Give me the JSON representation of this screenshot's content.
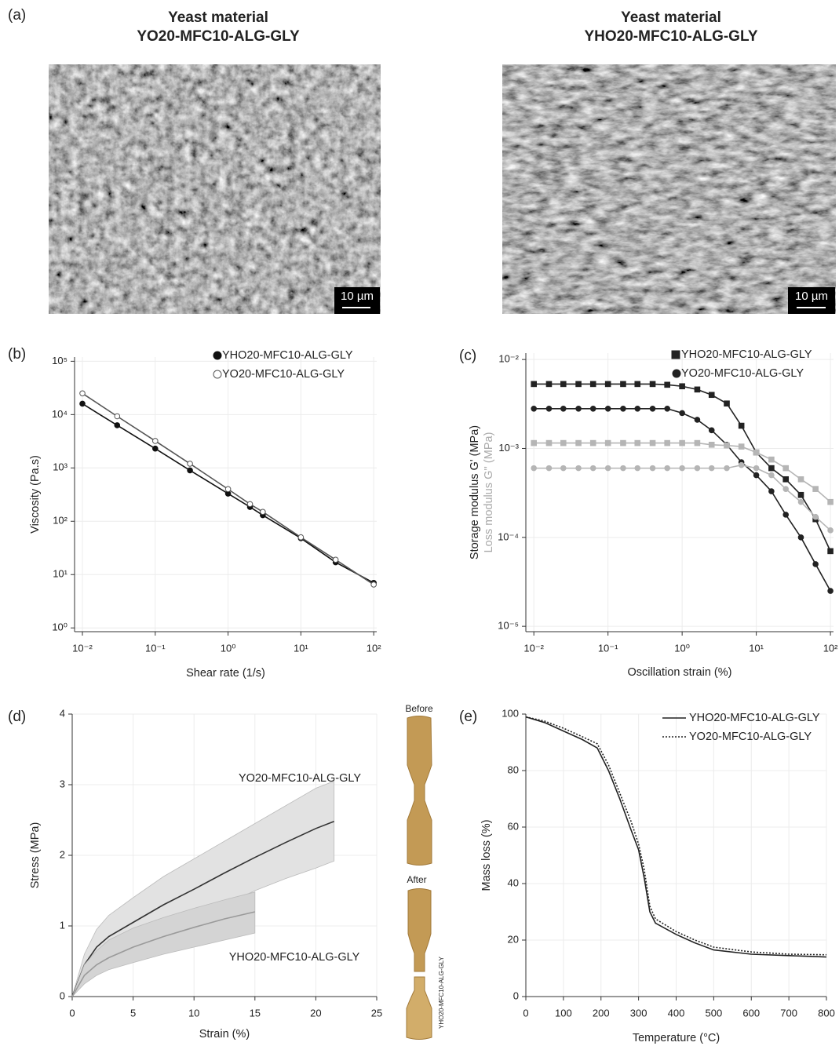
{
  "panel_labels": [
    "(a)",
    "(b)",
    "(c)",
    "(d)",
    "(e)"
  ],
  "images": [
    {
      "title": [
        "Yeast material",
        "YO20-MFC10-ALG-GLY"
      ],
      "scale_bar": "10 µm"
    },
    {
      "title": [
        "Yeast material",
        "YHO20-MFC10-ALG-GLY"
      ],
      "scale_bar": "10 µm"
    }
  ],
  "specimen_photo": {
    "before": "Before",
    "after": "After",
    "label": "YHO20-MFC10-ALG-GLY"
  },
  "chart_data": [
    {
      "type": "line",
      "xscale": "log",
      "yscale": "log",
      "grid": true,
      "legend": "upper right",
      "xlabel": "Shear rate (1/s)",
      "ylabels": [
        {
          "text": "Viscosity (Pa.s)",
          "color": "#222"
        }
      ],
      "xlim": [
        0.0078,
        110
      ],
      "ylim": [
        0.85,
        120000
      ],
      "xticks": [
        {
          "value": 0.01,
          "label": "10⁻²"
        },
        {
          "value": 0.1,
          "label": "10⁻¹"
        },
        {
          "value": 1,
          "label": "10⁰"
        },
        {
          "value": 10,
          "label": "10¹"
        },
        {
          "value": 100,
          "label": "10²"
        }
      ],
      "yticks": [
        {
          "value": 1,
          "label": "10⁰"
        },
        {
          "value": 10,
          "label": "10¹"
        },
        {
          "value": 100,
          "label": "10²"
        },
        {
          "value": 1000,
          "label": "10³"
        },
        {
          "value": 10000,
          "label": "10⁴"
        },
        {
          "value": 100000,
          "label": "10⁵"
        }
      ],
      "x": [
        0.01,
        0.03,
        0.1,
        0.3,
        1,
        2,
        3,
        10,
        30,
        100
      ],
      "series": [
        {
          "name": "YHO20-MFC10-ALG-GLY",
          "color": "#111111",
          "marker": "circle",
          "marker_fill": "#111111",
          "values": [
            16000,
            6300,
            2300,
            900,
            330,
            185,
            130,
            48,
            17,
            7
          ]
        },
        {
          "name": "YO20-MFC10-ALG-GLY",
          "color": "#555555",
          "marker": "circle",
          "marker_fill": "#ffffff",
          "values": [
            25000,
            9300,
            3200,
            1200,
            400,
            210,
            150,
            50,
            19,
            6.5
          ]
        }
      ]
    },
    {
      "type": "line",
      "xscale": "log",
      "yscale": "log",
      "grid": true,
      "legend": "upper right",
      "xlabel": "Oscillation strain (%)",
      "ylabels": [
        {
          "text": "Storage modulus G' (MPa)",
          "color": "#222222"
        },
        {
          "text": "Loss modulus G'' (MPa)",
          "color": "#aaaaaa"
        }
      ],
      "xlim": [
        0.0078,
        110
      ],
      "ylim": [
        8.7e-06,
        0.0118
      ],
      "xticks": [
        {
          "value": 0.01,
          "label": "10⁻²"
        },
        {
          "value": 0.1,
          "label": "10⁻¹"
        },
        {
          "value": 1,
          "label": "10⁰"
        },
        {
          "value": 10,
          "label": "10¹"
        },
        {
          "value": 100,
          "label": "10²"
        }
      ],
      "yticks": [
        {
          "value": 1e-05,
          "label": "10⁻⁵"
        },
        {
          "value": 0.0001,
          "label": "10⁻⁴"
        },
        {
          "value": 0.001,
          "label": "10⁻³"
        },
        {
          "value": 0.01,
          "label": "10⁻²"
        }
      ],
      "x": [
        0.01,
        0.016,
        0.025,
        0.04,
        0.063,
        0.1,
        0.16,
        0.25,
        0.4,
        0.63,
        1,
        1.6,
        2.5,
        4,
        6.3,
        10,
        16,
        25,
        40,
        63,
        100
      ],
      "series": [
        {
          "name": "YHO20-MFC10-ALG-GLY",
          "color": "#222222",
          "marker": "square",
          "marker_fill": "#222222",
          "values": [
            0.0053,
            0.0053,
            0.0053,
            0.0053,
            0.0053,
            0.0053,
            0.0053,
            0.0053,
            0.0053,
            0.0052,
            0.005,
            0.0046,
            0.004,
            0.0032,
            0.0018,
            0.0009,
            0.0006,
            0.00045,
            0.0003,
            0.00016,
            7e-05
          ]
        },
        {
          "name": "YO20-MFC10-ALG-GLY",
          "color": "#222222",
          "marker": "circle",
          "marker_fill": "#222222",
          "values": [
            0.0028,
            0.0028,
            0.0028,
            0.0028,
            0.0028,
            0.0028,
            0.0028,
            0.0028,
            0.0028,
            0.0028,
            0.0025,
            0.0021,
            0.0016,
            0.0011,
            0.0007,
            0.0005,
            0.00033,
            0.00018,
            0.0001,
            5e-05,
            2.5e-05
          ]
        },
        {
          "color": "#b5b5b5",
          "marker": "square",
          "marker_fill": "#b5b5b5",
          "values": [
            0.00115,
            0.00115,
            0.00115,
            0.00115,
            0.00115,
            0.00115,
            0.00115,
            0.00115,
            0.00115,
            0.00115,
            0.00115,
            0.00115,
            0.0011,
            0.00108,
            0.00105,
            0.0009,
            0.00075,
            0.0006,
            0.00045,
            0.00035,
            0.00025
          ]
        },
        {
          "color": "#b5b5b5",
          "marker": "circle",
          "marker_fill": "#b5b5b5",
          "values": [
            0.0006,
            0.0006,
            0.0006,
            0.0006,
            0.0006,
            0.0006,
            0.0006,
            0.0006,
            0.0006,
            0.0006,
            0.0006,
            0.0006,
            0.0006,
            0.0006,
            0.00065,
            0.0006,
            0.0005,
            0.00035,
            0.00025,
            0.00017,
            0.00012
          ]
        }
      ]
    },
    {
      "type": "line",
      "grid": true,
      "xlabel": "Strain (%)",
      "ylabels": [
        {
          "text": "Stress (MPa)",
          "color": "#222"
        }
      ],
      "xlim": [
        0,
        25
      ],
      "ylim": [
        0,
        4
      ],
      "xticks": [
        0,
        5,
        10,
        15,
        20,
        25
      ],
      "yticks": [
        0,
        1,
        2,
        3,
        4
      ],
      "annotations": [
        "YO20-MFC10-ALG-GLY",
        "YHO20-MFC10-ALG-GLY"
      ],
      "series": [
        {
          "color": "#333333",
          "band_color": "#e2e2e2",
          "x": [
            0,
            1,
            2,
            3,
            5,
            7.5,
            10,
            12.5,
            15,
            17.5,
            20,
            21.5
          ],
          "values": [
            0,
            0.45,
            0.7,
            0.85,
            1.05,
            1.3,
            1.52,
            1.75,
            1.97,
            2.18,
            2.38,
            2.48
          ],
          "upper": [
            0,
            0.6,
            0.95,
            1.15,
            1.4,
            1.7,
            1.95,
            2.2,
            2.45,
            2.7,
            2.95,
            3.05
          ],
          "lower": [
            0,
            0.3,
            0.5,
            0.6,
            0.75,
            0.95,
            1.1,
            1.3,
            1.5,
            1.67,
            1.82,
            1.92
          ]
        },
        {
          "color": "#9a9a9a",
          "band_color": "#d4d4d4",
          "x": [
            0,
            1,
            2,
            3,
            5,
            7.5,
            10,
            12.5,
            15
          ],
          "values": [
            0,
            0.3,
            0.45,
            0.55,
            0.7,
            0.85,
            0.98,
            1.1,
            1.2
          ],
          "upper": [
            0,
            0.45,
            0.65,
            0.8,
            0.97,
            1.12,
            1.25,
            1.37,
            1.48
          ],
          "lower": [
            0,
            0.18,
            0.3,
            0.38,
            0.48,
            0.6,
            0.7,
            0.8,
            0.9
          ]
        }
      ]
    },
    {
      "type": "line",
      "grid": true,
      "legend": "upper right",
      "xlabel": "Temperature (°C)",
      "ylabels": [
        {
          "text": "Mass loss (%)",
          "color": "#222"
        }
      ],
      "xlim": [
        0,
        800
      ],
      "ylim": [
        0,
        100
      ],
      "xticks": [
        0,
        100,
        200,
        300,
        400,
        500,
        600,
        700,
        800
      ],
      "yticks": [
        0,
        20,
        40,
        60,
        80,
        100
      ],
      "x": [
        0,
        50,
        100,
        150,
        190,
        220,
        250,
        280,
        300,
        315,
        330,
        345,
        400,
        450,
        500,
        600,
        700,
        800
      ],
      "series": [
        {
          "name": "YHO20-MFC10-ALG-GLY",
          "color": "#222222",
          "dash": "solid",
          "values": [
            99,
            97,
            94,
            91,
            88,
            80,
            70,
            59,
            52,
            42,
            30,
            26,
            22,
            19,
            16.5,
            15,
            14.5,
            14
          ]
        },
        {
          "name": "YO20-MFC10-ALG-GLY",
          "color": "#222222",
          "dash": "dotted",
          "values": [
            99,
            97.5,
            95,
            92,
            89.5,
            82,
            72,
            62,
            54,
            45,
            32,
            27.5,
            23,
            20,
            17.5,
            15.8,
            15,
            14.8
          ]
        }
      ]
    }
  ]
}
